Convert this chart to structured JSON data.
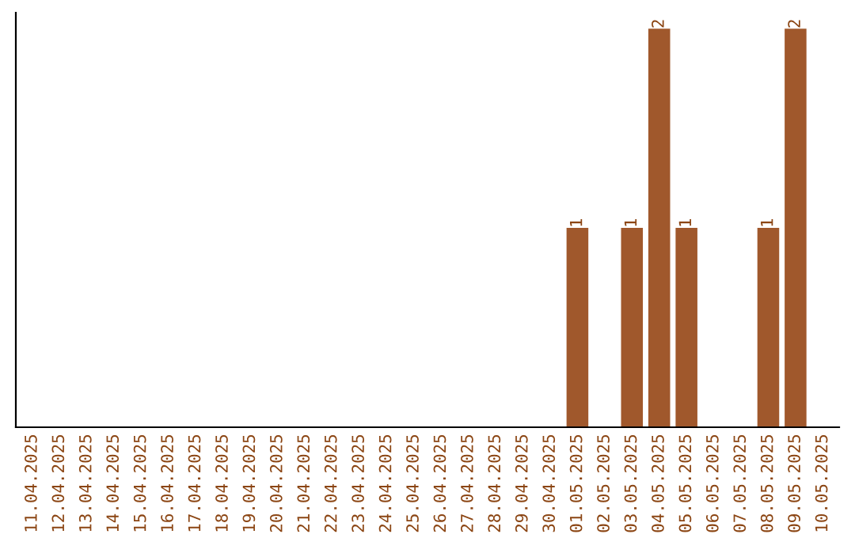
{
  "chart_data": {
    "type": "bar",
    "categories": [
      "11.04.2025",
      "12.04.2025",
      "13.04.2025",
      "14.04.2025",
      "15.04.2025",
      "16.04.2025",
      "17.04.2025",
      "18.04.2025",
      "19.04.2025",
      "20.04.2025",
      "21.04.2025",
      "22.04.2025",
      "23.04.2025",
      "24.04.2025",
      "25.04.2025",
      "26.04.2025",
      "27.04.2025",
      "28.04.2025",
      "29.04.2025",
      "30.04.2025",
      "01.05.2025",
      "02.05.2025",
      "03.05.2025",
      "04.05.2025",
      "05.05.2025",
      "06.05.2025",
      "07.05.2025",
      "08.05.2025",
      "09.05.2025",
      "10.05.2025"
    ],
    "values": [
      null,
      null,
      null,
      null,
      null,
      null,
      null,
      null,
      null,
      null,
      null,
      null,
      null,
      null,
      null,
      null,
      null,
      null,
      null,
      null,
      1,
      null,
      1,
      2,
      1,
      null,
      null,
      1,
      2,
      null
    ],
    "value_labels": [
      null,
      null,
      null,
      null,
      null,
      null,
      null,
      null,
      null,
      null,
      null,
      null,
      null,
      null,
      null,
      null,
      null,
      null,
      null,
      null,
      "1",
      null,
      "1",
      "2",
      "1",
      null,
      null,
      "1",
      "2",
      null
    ],
    "color": "#a0582c",
    "tick_labels": "x",
    "grid": false,
    "legend": false
  }
}
